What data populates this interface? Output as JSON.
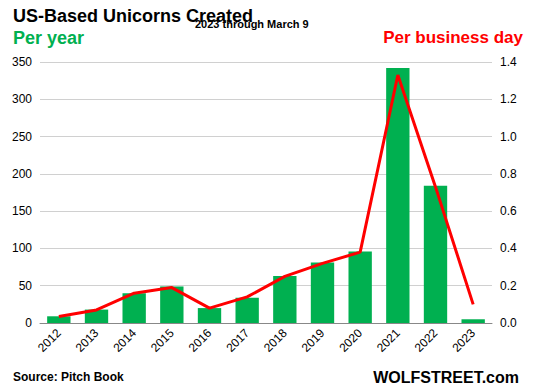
{
  "chart_data": {
    "type": "bar",
    "title": "US-Based Unicorns Created",
    "subtitle": "2023 through March 9",
    "categories": [
      "2012",
      "2013",
      "2014",
      "2015",
      "2016",
      "2017",
      "2018",
      "2019",
      "2020",
      "2021",
      "2022",
      "2023"
    ],
    "series": [
      {
        "name": "Per year",
        "type": "bar",
        "color": "#00b050",
        "values": [
          9,
          18,
          40,
          49,
          20,
          34,
          63,
          81,
          96,
          342,
          184,
          5
        ]
      },
      {
        "name": "Per business day",
        "type": "line",
        "color": "#ff0000",
        "axis": "y2",
        "values": [
          0.035,
          0.07,
          0.16,
          0.19,
          0.08,
          0.14,
          0.25,
          0.32,
          0.38,
          1.33,
          0.73,
          0.1
        ]
      }
    ],
    "ylim": [
      0,
      350
    ],
    "yticks": [
      0,
      50,
      100,
      150,
      200,
      250,
      300,
      350
    ],
    "y2lim": [
      0,
      1.4
    ],
    "y2ticks": [
      {
        "value": 0,
        "label": "0.0"
      },
      {
        "value": 0.2,
        "label": "0.2"
      },
      {
        "value": 0.4,
        "label": "0.4"
      },
      {
        "value": 0.6,
        "label": "0.6"
      },
      {
        "value": 0.8,
        "label": "0.8"
      },
      {
        "value": 1,
        "label": "1.0"
      },
      {
        "value": 1.2,
        "label": "1.2"
      },
      {
        "value": 1.4,
        "label": "1.4"
      }
    ],
    "grid": true,
    "annotations": [
      "Source: Pitch Book",
      "WOLFSTREET.com"
    ]
  }
}
